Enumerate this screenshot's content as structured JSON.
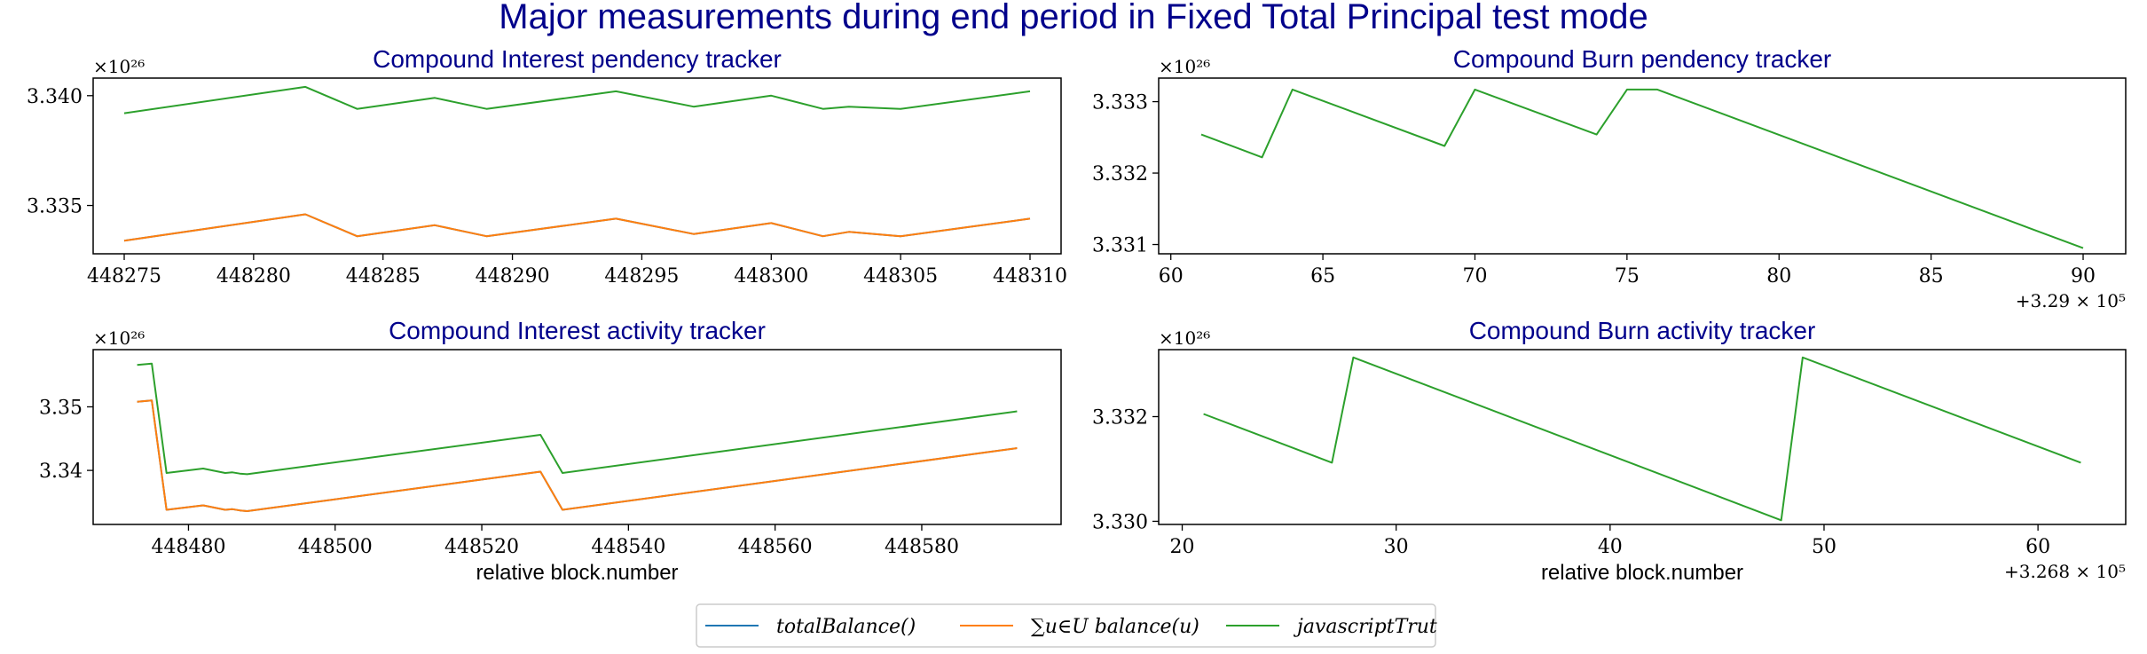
{
  "page_title": "Major measurements during end period in Fixed Total Principal test mode",
  "legend": [
    {
      "label": "totalBalance()",
      "color": "#1f77b4"
    },
    {
      "label": "∑u∈U balance(u)",
      "color": "#ff7f0e"
    },
    {
      "label": "javascriptTrut",
      "color": "#2ca02c"
    }
  ],
  "chart_data": [
    {
      "type": "line",
      "title": "Compound Interest pendency tracker",
      "xlabel": "",
      "exponent_label": "×10²⁶",
      "offset_label": "",
      "xlim": [
        448273.8,
        448311.2
      ],
      "ylim": [
        3.3328,
        3.3408
      ],
      "xticks": [
        448275,
        448280,
        448285,
        448290,
        448295,
        448300,
        448305,
        448310
      ],
      "xtick_labels": [
        "448275",
        "448280",
        "448285",
        "448290",
        "448295",
        "448300",
        "448305",
        "448310"
      ],
      "yticks": [
        3.335,
        3.34
      ],
      "ytick_labels": [
        "3.335",
        "3.340"
      ],
      "series": [
        {
          "name": "totalBalance()",
          "color": "#1f77b4",
          "x": [
            448275,
            448282,
            448284,
            448287,
            448289,
            448294,
            448297,
            448300,
            448302,
            448303,
            448305,
            448310
          ],
          "y": [
            3.3334,
            3.3346,
            3.3336,
            3.3341,
            3.3336,
            3.3344,
            3.3337,
            3.3342,
            3.3336,
            3.3338,
            3.3336,
            3.3344
          ]
        },
        {
          "name": "∑u∈U balance(u)",
          "color": "#ff7f0e",
          "x": [
            448275,
            448282,
            448284,
            448287,
            448289,
            448294,
            448297,
            448300,
            448302,
            448303,
            448305,
            448310
          ],
          "y": [
            3.3334,
            3.3346,
            3.3336,
            3.3341,
            3.3336,
            3.3344,
            3.3337,
            3.3342,
            3.3336,
            3.3338,
            3.3336,
            3.3344
          ]
        },
        {
          "name": "javascriptTrut",
          "color": "#2ca02c",
          "x": [
            448275,
            448282,
            448284,
            448287,
            448289,
            448294,
            448297,
            448300,
            448302,
            448303,
            448305,
            448310
          ],
          "y": [
            3.3392,
            3.3404,
            3.3394,
            3.3399,
            3.3394,
            3.3402,
            3.3395,
            3.34,
            3.3394,
            3.3395,
            3.3394,
            3.3402
          ]
        }
      ]
    },
    {
      "type": "line",
      "title": "Compound Burn pendency tracker",
      "xlabel": "",
      "exponent_label": "×10²⁶",
      "offset_label": "+3.29 × 10⁵",
      "xlim": [
        329059.6,
        329091.4
      ],
      "ylim": [
        3.33087,
        3.33333
      ],
      "xticks": [
        329060,
        329065,
        329070,
        329075,
        329080,
        329085,
        329090
      ],
      "xtick_labels": [
        "60",
        "65",
        "70",
        "75",
        "80",
        "85",
        "90"
      ],
      "yticks": [
        3.331,
        3.332,
        3.333
      ],
      "ytick_labels": [
        "3.331",
        "3.332",
        "3.333"
      ],
      "series": [
        {
          "name": "javascriptTrut",
          "color": "#2ca02c",
          "x": [
            329061,
            329063,
            329064,
            329069,
            329070,
            329074,
            329075,
            329076,
            329090
          ],
          "y": [
            3.33254,
            3.33222,
            3.33317,
            3.33238,
            3.33317,
            3.33254,
            3.33317,
            3.33317,
            3.33095
          ]
        }
      ]
    },
    {
      "type": "line",
      "title": "Compound Interest activity tracker",
      "xlabel": "relative block.number",
      "exponent_label": "×10²⁶",
      "offset_label": "",
      "xlim": [
        448467,
        448599
      ],
      "ylim": [
        3.3315,
        3.359
      ],
      "xticks": [
        448480,
        448500,
        448520,
        448540,
        448560,
        448580
      ],
      "xtick_labels": [
        "448480",
        "448500",
        "448520",
        "448540",
        "448560",
        "448580"
      ],
      "yticks": [
        3.34,
        3.35
      ],
      "ytick_labels": [
        "3.34",
        "3.35"
      ],
      "series": [
        {
          "name": "totalBalance()",
          "color": "#1f77b4",
          "x": [
            448473,
            448475,
            448477,
            448482,
            448485,
            448486,
            448487,
            448488,
            448528,
            448531,
            448593
          ],
          "y": [
            3.3508,
            3.351,
            3.3338,
            3.3345,
            3.3338,
            3.3339,
            3.3337,
            3.3336,
            3.3398,
            3.3338,
            3.3435
          ]
        },
        {
          "name": "∑u∈U balance(u)",
          "color": "#ff7f0e",
          "x": [
            448473,
            448475,
            448477,
            448482,
            448485,
            448486,
            448487,
            448488,
            448528,
            448531,
            448593
          ],
          "y": [
            3.3508,
            3.351,
            3.3338,
            3.3345,
            3.3338,
            3.3339,
            3.3337,
            3.3336,
            3.3398,
            3.3338,
            3.3435
          ]
        },
        {
          "name": "javascriptTrut",
          "color": "#2ca02c",
          "x": [
            448473,
            448475,
            448477,
            448482,
            448485,
            448486,
            448487,
            448488,
            448528,
            448531,
            448593
          ],
          "y": [
            3.3566,
            3.3568,
            3.3396,
            3.3403,
            3.3396,
            3.3397,
            3.3395,
            3.3394,
            3.3456,
            3.3396,
            3.3493
          ]
        }
      ]
    },
    {
      "type": "line",
      "title": "Compound Burn activity tracker",
      "xlabel": "relative block.number",
      "exponent_label": "×10²⁶",
      "offset_label": "+3.268 × 10⁵",
      "xlim": [
        326818.9,
        326864.1
      ],
      "ylim": [
        3.32994,
        3.33328
      ],
      "xticks": [
        326820,
        326830,
        326840,
        326850,
        326860
      ],
      "xtick_labels": [
        "20",
        "30",
        "40",
        "50",
        "60"
      ],
      "yticks": [
        3.33,
        3.332
      ],
      "ytick_labels": [
        "3.330",
        "3.332"
      ],
      "series": [
        {
          "name": "javascriptTrut",
          "color": "#2ca02c",
          "x": [
            326821,
            326827,
            326828,
            326848,
            326849,
            326862
          ],
          "y": [
            3.33205,
            3.33112,
            3.33313,
            3.33002,
            3.33313,
            3.33112
          ]
        }
      ]
    }
  ]
}
